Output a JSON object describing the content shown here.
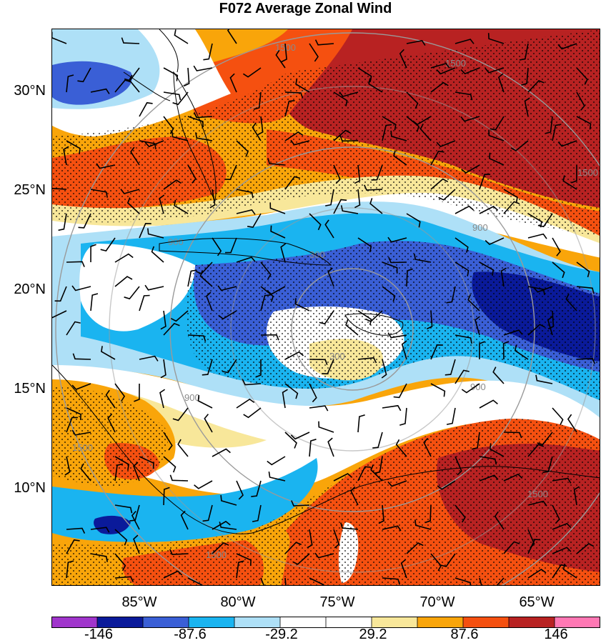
{
  "title": "F072 Average Zonal Wind",
  "lat_labels": [
    "30°N",
    "25°N",
    "20°N",
    "15°N",
    "10°N"
  ],
  "lon_labels": [
    "85°W",
    "80°W",
    "75°W",
    "70°W",
    "65°W"
  ],
  "ring_labels": [
    "300",
    "300",
    "900",
    "900",
    "900",
    "900",
    "1500",
    "1500",
    "1500",
    "1500",
    "1500",
    "1500"
  ],
  "colorbar": {
    "labels": [
      "-146",
      "-87.6",
      "-29.2",
      "29.2",
      "87.6",
      "146"
    ],
    "colors": [
      "#a035cc",
      "#0a1a9a",
      "#3a5fd6",
      "#1ab4f0",
      "#aee0f7",
      "#ffffff",
      "#ffffff",
      "#f8e79a",
      "#f9a50a",
      "#f55010",
      "#b82222",
      "#ff78b4"
    ]
  },
  "colors": {
    "dark_red": "#b82222",
    "red_orange": "#f55010",
    "orange": "#f9a50a",
    "yellow": "#f8e79a",
    "light_blue": "#aee0f7",
    "cyan": "#1ab4f0",
    "mid_blue": "#3a5fd6",
    "navy": "#0a1a9a"
  }
}
